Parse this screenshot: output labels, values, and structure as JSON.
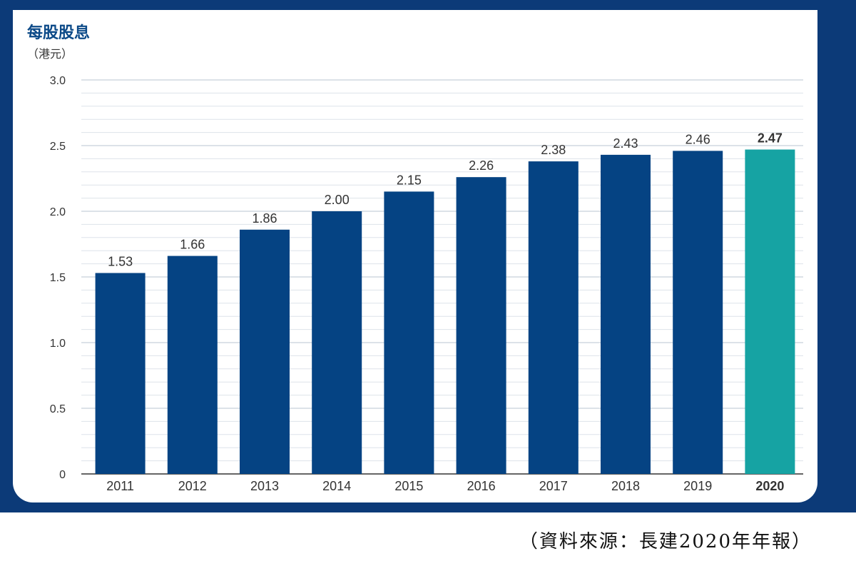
{
  "header": {
    "title": "每股股息",
    "unit": "（港元）"
  },
  "source_note": "（資料來源：長建2020年年報）",
  "colors": {
    "frame": "#0c3a78",
    "bar": "#054383",
    "highlight_bar": "#16a3a3",
    "title": "#0c4a88"
  },
  "chart_data": {
    "type": "bar",
    "title": "每股股息",
    "ylabel": "（港元）",
    "xlabel": "",
    "categories": [
      "2011",
      "2012",
      "2013",
      "2014",
      "2015",
      "2016",
      "2017",
      "2018",
      "2019",
      "2020"
    ],
    "values": [
      1.53,
      1.66,
      1.86,
      2.0,
      2.15,
      2.26,
      2.38,
      2.43,
      2.46,
      2.47
    ],
    "value_labels": [
      "1.53",
      "1.66",
      "1.86",
      "2.00",
      "2.15",
      "2.26",
      "2.38",
      "2.43",
      "2.46",
      "2.47"
    ],
    "ylim": [
      0,
      3.0
    ],
    "yticks": [
      0,
      0.5,
      1.0,
      1.5,
      2.0,
      2.5,
      3.0
    ],
    "ytick_labels": [
      "0",
      "0.5",
      "1.0",
      "1.5",
      "2.0",
      "2.5",
      "3.0"
    ],
    "minor_grid_step": 0.1,
    "grid": true,
    "highlight_category": "2020"
  }
}
